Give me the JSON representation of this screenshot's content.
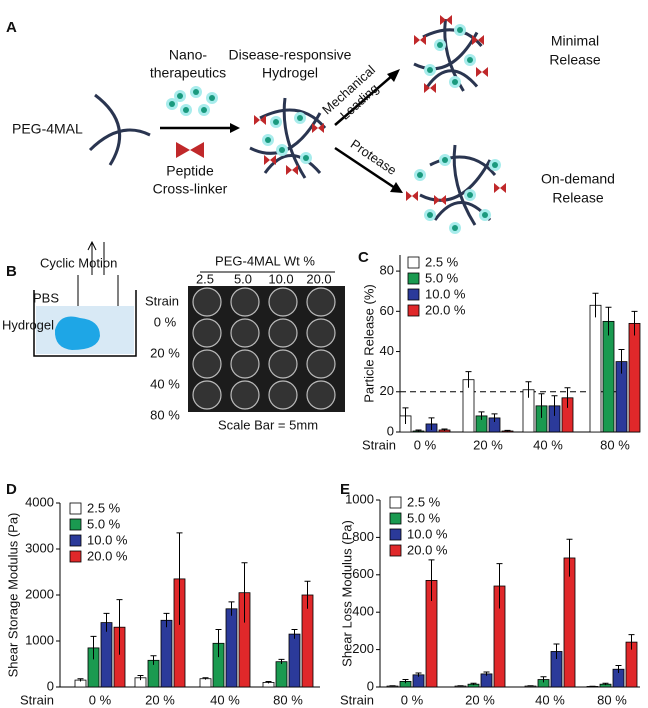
{
  "panel_a": {
    "label": "A",
    "polymer": "PEG-4MAL",
    "nanotherapeutics": [
      "Nano-",
      "therapeutics"
    ],
    "crosslinker": [
      "Peptide",
      "Cross-linker"
    ],
    "hydrogel": [
      "Disease-responsive",
      "Hydrogel"
    ],
    "mechanical": [
      "Mechanical",
      "Loading"
    ],
    "protease": "Protease",
    "minimal": [
      "Minimal",
      "Release"
    ],
    "ondemand": [
      "On-demand",
      "Release"
    ]
  },
  "panel_b": {
    "label": "B",
    "cyclic": "Cyclic Motion",
    "pbs": "PBS",
    "hydrogel": "Hydrogel",
    "header": "PEG-4MAL Wt %",
    "columns": [
      {
        "text": "2.5",
        "color": "#000000"
      },
      {
        "text": "5.0",
        "color": "#1a9a50"
      },
      {
        "text": "10.0",
        "color": "#2b3a9a"
      },
      {
        "text": "20.0",
        "color": "#e0282a"
      }
    ],
    "row_title": "Strain",
    "rows": [
      "0 %",
      "20 %",
      "40 %",
      "80 %"
    ],
    "scale": "Scale Bar = 5mm"
  },
  "chart_data": [
    {
      "type": "bar",
      "panel": "C",
      "y_label": "Particle Release (%)",
      "strain_label": "Strain",
      "categories": [
        "0 %",
        "20 %",
        "40 %",
        "80 %"
      ],
      "ylim": [
        0,
        88
      ],
      "yticks": [
        0,
        20,
        40,
        60,
        80
      ],
      "reference_line": 20,
      "series": [
        {
          "name": "2.5 %",
          "color": "#ffffff",
          "values": [
            8,
            26,
            21,
            63
          ],
          "errors": [
            4,
            4,
            4,
            6
          ]
        },
        {
          "name": "5.0 %",
          "color": "#1a9a50",
          "values": [
            0.5,
            8,
            13,
            55
          ],
          "errors": [
            0.5,
            2,
            6,
            7
          ]
        },
        {
          "name": "10.0 %",
          "color": "#2b3a9a",
          "values": [
            4,
            7,
            13,
            35
          ],
          "errors": [
            3,
            2,
            5,
            6
          ]
        },
        {
          "name": "20.0 %",
          "color": "#e0282a",
          "values": [
            1,
            0.5,
            17,
            54
          ],
          "errors": [
            0.5,
            0.3,
            5,
            6
          ]
        }
      ]
    },
    {
      "type": "bar",
      "panel": "D",
      "y_label": "Shear Storage Modulus (Pa)",
      "strain_label": "Strain",
      "categories": [
        "0 %",
        "20 %",
        "40 %",
        "80 %"
      ],
      "ylim": [
        0,
        4000
      ],
      "yticks": [
        0,
        1000,
        2000,
        3000,
        4000
      ],
      "series": [
        {
          "name": "2.5 %",
          "color": "#ffffff",
          "values": [
            150,
            200,
            180,
            100
          ],
          "errors": [
            30,
            50,
            20,
            20
          ]
        },
        {
          "name": "5.0 %",
          "color": "#1a9a50",
          "values": [
            850,
            580,
            950,
            550
          ],
          "errors": [
            250,
            100,
            300,
            50
          ]
        },
        {
          "name": "10.0 %",
          "color": "#2b3a9a",
          "values": [
            1400,
            1450,
            1700,
            1150
          ],
          "errors": [
            200,
            150,
            150,
            100
          ]
        },
        {
          "name": "20.0 %",
          "color": "#e0282a",
          "values": [
            1300,
            2350,
            2050,
            2000
          ],
          "errors": [
            600,
            1000,
            650,
            300
          ]
        }
      ]
    },
    {
      "type": "bar",
      "panel": "E",
      "y_label": "Shear Loss Modulus (Pa)",
      "strain_label": "Strain",
      "categories": [
        "0 %",
        "20 %",
        "40 %",
        "80 %"
      ],
      "ylim": [
        0,
        1000
      ],
      "yticks": [
        0,
        200,
        400,
        600,
        800,
        1000
      ],
      "series": [
        {
          "name": "2.5 %",
          "color": "#ffffff",
          "values": [
            5,
            5,
            5,
            3
          ],
          "errors": [
            2,
            2,
            2,
            1
          ]
        },
        {
          "name": "5.0 %",
          "color": "#1a9a50",
          "values": [
            30,
            15,
            40,
            15
          ],
          "errors": [
            10,
            5,
            15,
            5
          ]
        },
        {
          "name": "10.0 %",
          "color": "#2b3a9a",
          "values": [
            65,
            70,
            190,
            95
          ],
          "errors": [
            10,
            10,
            40,
            20
          ]
        },
        {
          "name": "20.0 %",
          "color": "#e0282a",
          "values": [
            570,
            540,
            690,
            240
          ],
          "errors": [
            110,
            120,
            100,
            40
          ]
        }
      ]
    }
  ]
}
